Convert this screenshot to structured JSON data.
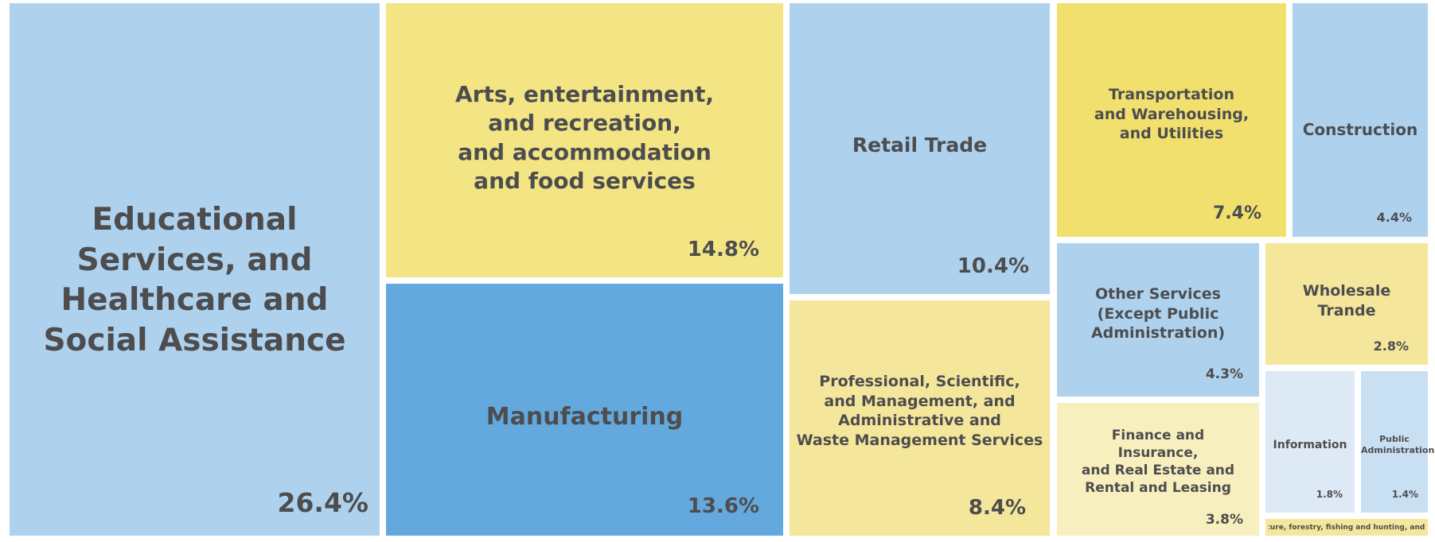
{
  "chart_data": {
    "type": "treemap",
    "colors": {
      "light_blue": "#aed2ee",
      "blue": "#64a9dd",
      "pale_blue": "#c9e0f3",
      "very_pale_blue": "#ddeaf6",
      "yellow": "#f3e584",
      "gold": "#f1df6e",
      "pale_yellow": "#f4e69b",
      "cream": "#f8efbe",
      "text": "#4d4d4f"
    },
    "tiles": [
      {
        "name": "Educational\nServices, and\nHealthcare and\nSocial Assistance",
        "label": "26.4%",
        "value": 26.4,
        "color": "light_blue"
      },
      {
        "name": "Arts, entertainment,\nand recreation,\nand accommodation\nand food services",
        "label": "14.8%",
        "value": 14.8,
        "color": "yellow"
      },
      {
        "name": "Manufacturing",
        "label": "13.6%",
        "value": 13.6,
        "color": "blue"
      },
      {
        "name": "Retail Trade",
        "label": "10.4%",
        "value": 10.4,
        "color": "light_blue"
      },
      {
        "name": "Professional, Scientific,\nand Management, and\nAdministrative and\nWaste Management Services",
        "label": "8.4%",
        "value": 8.4,
        "color": "pale_yellow"
      },
      {
        "name": "Transportation\nand Warehousing,\nand Utilities",
        "label": "7.4%",
        "value": 7.4,
        "color": "gold"
      },
      {
        "name": "Construction",
        "label": "4.4%",
        "value": 4.4,
        "color": "light_blue"
      },
      {
        "name": "Other Services\n(Except Public\nAdministration)",
        "label": "4.3%",
        "value": 4.3,
        "color": "light_blue"
      },
      {
        "name": "Wholesale\nTrande",
        "label": "2.8%",
        "value": 2.8,
        "color": "pale_yellow"
      },
      {
        "name": "Finance and\nInsurance,\nand Real Estate and\nRental and Leasing",
        "label": "3.8%",
        "value": 3.8,
        "color": "cream"
      },
      {
        "name": "Information",
        "label": "1.8%",
        "value": 1.8,
        "color": "very_pale_blue"
      },
      {
        "name": "Public\nAdministration",
        "label": "1.4%",
        "value": 1.4,
        "color": "pale_blue"
      },
      {
        "name": "Agriculture, forestry, fishing and hunting, and mining",
        "label": "",
        "color": "pale_yellow"
      }
    ]
  }
}
